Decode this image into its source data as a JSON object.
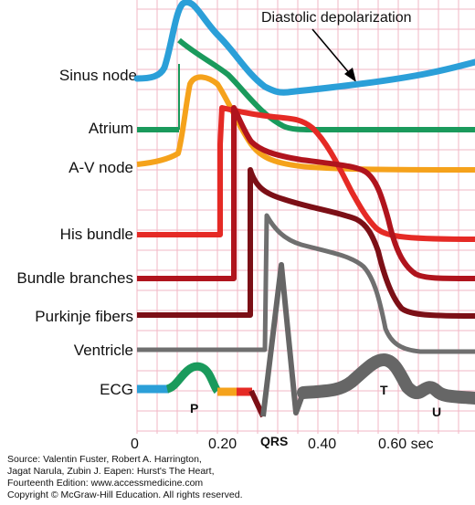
{
  "colors": {
    "grid": "#f2b7c6",
    "sinus": "#2b9fd8",
    "atrium": "#1a9a5c",
    "av": "#f5a21b",
    "his": "#e52a25",
    "bundle": "#b0141d",
    "purkinje": "#7c0f16",
    "ventricle": "#6f6f6f",
    "ecg_gray": "#666666"
  },
  "labels": {
    "sinus": "Sinus node",
    "atrium": "Atrium",
    "av": "A-V node",
    "his": "His bundle",
    "bundle": "Bundle branches",
    "purkinje": "Purkinje fibers",
    "ventricle": "Ventricle",
    "ecg": "ECG"
  },
  "annotation": "Diastolic depolarization",
  "waves": {
    "p": "P",
    "qrs": "QRS",
    "t": "T",
    "u": "U"
  },
  "xaxis": {
    "t0": "0",
    "t1": "0.20",
    "t2": "0.40",
    "t3": "0.60 sec"
  },
  "source": {
    "line1": "Source: Valentin Fuster, Robert A. Harrington,",
    "line2": "Jagat Narula, Zubin J. Eapen: Hurst's The Heart,",
    "line3": "Fourteenth Edition: www.accessmedicine.com",
    "line4": "Copyright © McGraw-Hill Education. All rights reserved."
  }
}
